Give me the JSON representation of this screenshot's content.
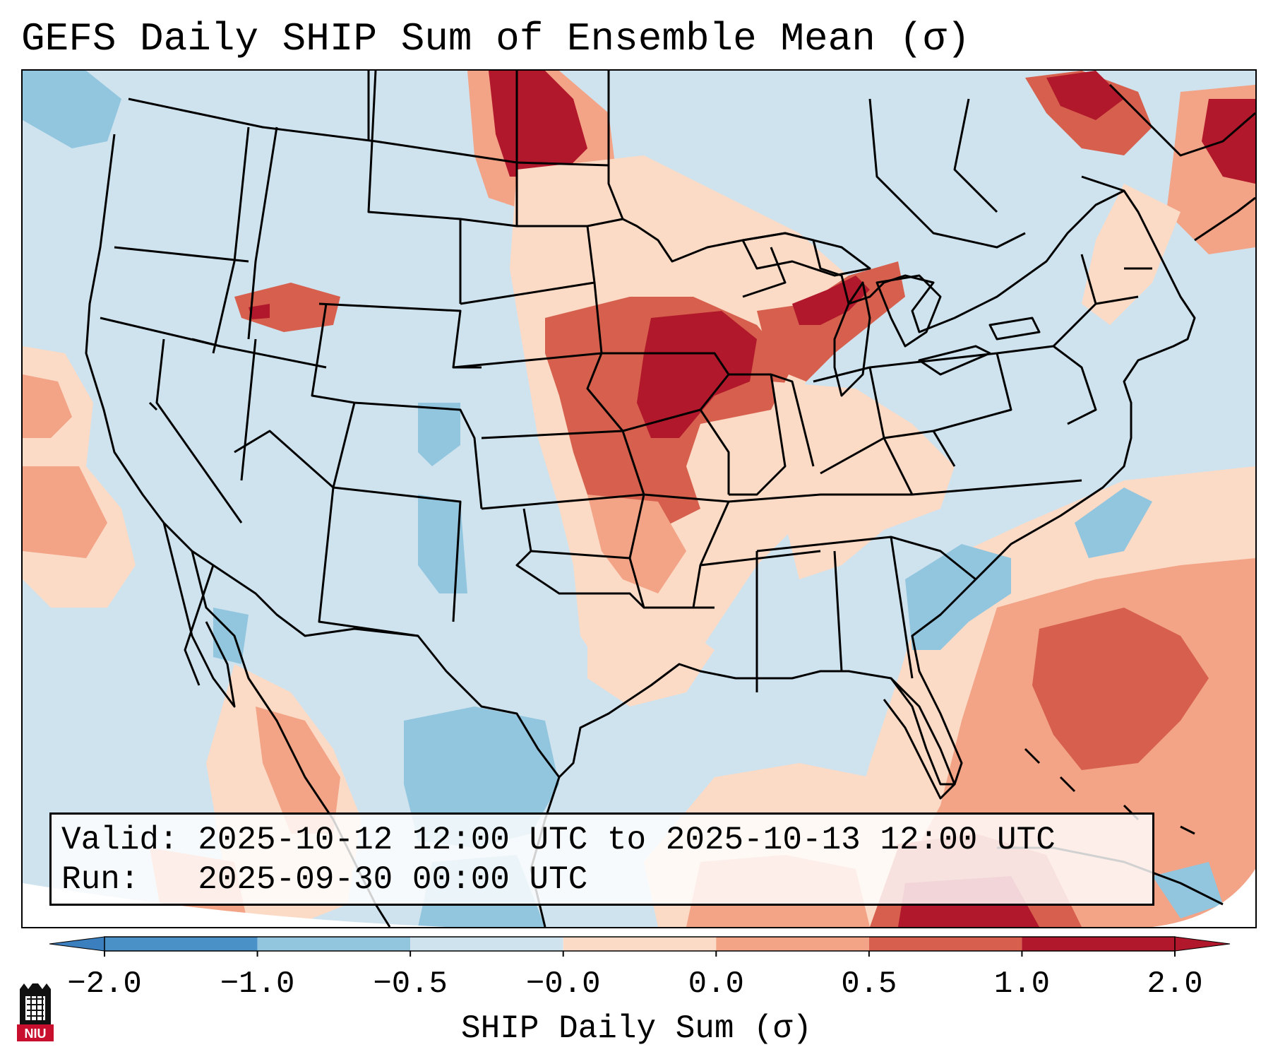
{
  "title": "GEFS Daily SHIP Sum of Ensemble Mean (σ)",
  "info": {
    "valid_line": "Valid: 2025-10-12 12:00 UTC to 2025-10-13 12:00 UTC",
    "run_line": "Run:   2025-09-30 00:00 UTC"
  },
  "colorbar": {
    "label": "SHIP Daily Sum (σ)",
    "ticks": [
      "−2.0",
      "−1.0",
      "−0.5",
      "−0.0",
      "0.0",
      "0.5",
      "1.0",
      "2.0"
    ],
    "bins": [
      {
        "range": "below -2.0",
        "color": "#3b7fbf"
      },
      {
        "range": "-2.0 to -1.0",
        "color": "#4a91c8"
      },
      {
        "range": "-1.0 to -0.5",
        "color": "#92c5de"
      },
      {
        "range": "-0.5 to 0.0",
        "color": "#cfe3ef"
      },
      {
        "range": "0.0 to 0.5",
        "color": "#fbdac6"
      },
      {
        "range": "0.5 to 1.0",
        "color": "#f3a386"
      },
      {
        "range": "1.0 to 2.0",
        "color": "#d6604d"
      },
      {
        "range": "above 2.0",
        "color": "#b2182b"
      }
    ]
  },
  "map": {
    "region": "Continental United States, northern Mexico and surrounding waters",
    "background_color": "#cfe3ef",
    "anomaly_areas": [
      {
        "name": "Southern Saskatchewan",
        "level": "strong positive",
        "color": "#b2182b"
      },
      {
        "name": "Eastern Nebraska and Iowa",
        "level": "strong positive",
        "color": "#b2182b"
      },
      {
        "name": "Central Plains",
        "level": "positive",
        "color": "#d6604d"
      },
      {
        "name": "Wisconsin and Michigan",
        "level": "positive",
        "color": "#d6604d"
      },
      {
        "name": "Missouri and Arkansas",
        "level": "weak positive",
        "color": "#fbdac6"
      },
      {
        "name": "Atlantic east of Florida",
        "level": "positive",
        "color": "#d6604d"
      },
      {
        "name": "Gulf of Mexico south",
        "level": "positive",
        "color": "#f3a386"
      },
      {
        "name": "Quebec and Maine",
        "level": "strong positive",
        "color": "#b2182b"
      },
      {
        "name": "Pacific coast of California",
        "level": "weak positive",
        "color": "#fbdac6"
      },
      {
        "name": "Northern Mexico",
        "level": "negative",
        "color": "#92c5de"
      },
      {
        "name": "Georgia",
        "level": "negative",
        "color": "#92c5de"
      },
      {
        "name": "Colorado and New Mexico",
        "level": "negative",
        "color": "#92c5de"
      }
    ]
  },
  "logo": {
    "text": "NIU",
    "color": "#c8102e"
  }
}
